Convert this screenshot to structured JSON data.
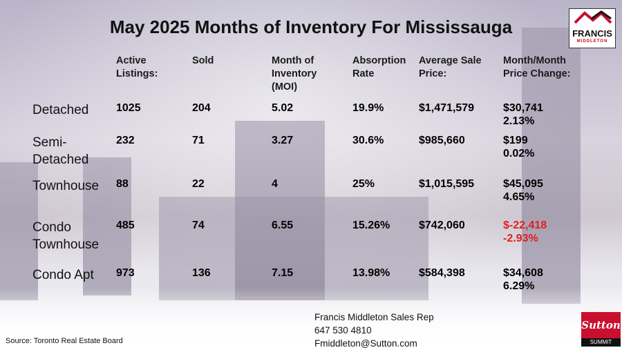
{
  "title": "May 2025 Months of Inventory For Mississauga",
  "headers": {
    "active": "Active\nListings:",
    "sold": "Sold",
    "moi": "Month of\nInventory\n(MOI)",
    "absorption": "Absorption\nRate",
    "avg_price": "Average Sale\nPrice:",
    "mom_change": "Month/Month\nPrice Change:"
  },
  "rows": [
    {
      "label": "Detached",
      "active": "1025",
      "sold": "204",
      "moi": "5.02",
      "absorption": "19.9%",
      "avg_price": "$1,471,579",
      "change_amount": "$30,741",
      "change_pct": "2.13%"
    },
    {
      "label": "Semi-\nDetached",
      "active": "232",
      "sold": "71",
      "moi": "3.27",
      "absorption": "30.6%",
      "avg_price": "$985,660",
      "change_amount": "$199",
      "change_pct": "0.02%"
    },
    {
      "label": "Townhouse",
      "active": "88",
      "sold": "22",
      "moi": "4",
      "absorption": "25%",
      "avg_price": "$1,015,595",
      "change_amount": "$45,095",
      "change_pct": "4.65%"
    },
    {
      "label": "Condo\nTownhouse",
      "active": "485",
      "sold": "74",
      "moi": "6.55",
      "absorption": "15.26%",
      "avg_price": "$742,060",
      "change_amount": "$-22,418",
      "change_pct": "-2.93%"
    },
    {
      "label": "Condo Apt",
      "active": "973",
      "sold": "136",
      "moi": "7.15",
      "absorption": "13.98%",
      "avg_price": "$584,398",
      "change_amount": "$34,608",
      "change_pct": "6.29%"
    }
  ],
  "contact": {
    "name": "Francis Middleton Sales Rep",
    "phone": "647 530 4810",
    "email": "Fmiddleton@Sutton.com"
  },
  "source": "Source: Toronto Real Estate Board",
  "logo": {
    "name": "FRANCIS",
    "sub": "MIDDLETON"
  },
  "brokerage": {
    "name": "Sutton",
    "sub": "SUMMIT"
  },
  "colors": {
    "negative": "#e02020",
    "brand_red": "#c8102e"
  }
}
